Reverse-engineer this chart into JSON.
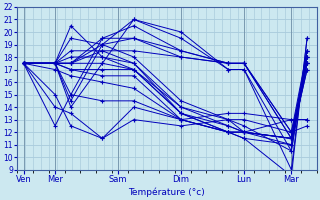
{
  "xlabel": "Température (°c)",
  "bg_color": "#cce8f0",
  "line_color": "#0000bb",
  "grid_color": "#aaccdd",
  "ylim": [
    9,
    22
  ],
  "yticks": [
    9,
    10,
    11,
    12,
    13,
    14,
    15,
    16,
    17,
    18,
    19,
    20,
    21,
    22
  ],
  "xtick_labels": [
    "Ven",
    "Mer",
    "Sam",
    "Dim",
    "Lun",
    "Mar"
  ],
  "xtick_pos": [
    0,
    1,
    3,
    5,
    7,
    8.5
  ],
  "xlim": [
    -0.2,
    9.3
  ],
  "series": [
    [
      17.5,
      17.5,
      20.5,
      18.0,
      17.5,
      13.5,
      12.0,
      11.5,
      8.5,
      19.5
    ],
    [
      17.5,
      17.5,
      19.5,
      19.0,
      18.0,
      14.5,
      13.0,
      12.5,
      10.5,
      18.5
    ],
    [
      17.5,
      17.5,
      18.5,
      18.5,
      17.5,
      14.0,
      13.0,
      12.0,
      11.0,
      18.0
    ],
    [
      17.5,
      17.5,
      18.0,
      18.0,
      17.0,
      14.0,
      12.5,
      12.0,
      11.5,
      17.5
    ],
    [
      17.5,
      17.5,
      17.5,
      17.5,
      17.0,
      13.5,
      12.5,
      12.0,
      11.5,
      17.5
    ],
    [
      17.5,
      17.5,
      17.0,
      17.0,
      17.0,
      13.5,
      12.0,
      12.0,
      11.5,
      17.0
    ],
    [
      17.5,
      17.5,
      17.0,
      16.5,
      16.5,
      13.0,
      12.0,
      12.0,
      11.5,
      17.0
    ],
    [
      17.5,
      17.0,
      16.5,
      16.0,
      15.5,
      13.0,
      12.0,
      11.5,
      11.0,
      17.5
    ],
    [
      17.5,
      12.5,
      15.0,
      14.5,
      14.5,
      13.0,
      12.0,
      12.0,
      13.0,
      13.0
    ],
    [
      17.5,
      14.0,
      13.5,
      11.5,
      14.0,
      13.0,
      13.5,
      13.5,
      13.0,
      13.0
    ],
    [
      17.5,
      15.0,
      12.5,
      11.5,
      13.0,
      12.5,
      13.0,
      13.0,
      12.0,
      12.5
    ],
    [
      17.5,
      17.5,
      14.0,
      17.5,
      21.0,
      20.0,
      17.0,
      17.0,
      9.0,
      19.5
    ],
    [
      17.5,
      17.5,
      14.5,
      19.0,
      21.0,
      19.5,
      17.0,
      17.0,
      10.5,
      18.0
    ],
    [
      17.5,
      17.5,
      15.0,
      19.5,
      20.5,
      18.5,
      17.5,
      17.5,
      11.5,
      18.5
    ],
    [
      17.5,
      17.5,
      17.5,
      19.5,
      19.5,
      18.0,
      17.5,
      17.5,
      12.0,
      17.5
    ],
    [
      17.5,
      17.5,
      17.5,
      19.0,
      19.5,
      18.5,
      17.5,
      17.5,
      11.5,
      18.0
    ],
    [
      17.5,
      17.5,
      17.5,
      18.5,
      18.5,
      18.0,
      17.5,
      17.5,
      12.0,
      18.5
    ]
  ],
  "x_positions": [
    0,
    1,
    1.5,
    2.5,
    3.5,
    5,
    6.5,
    7,
    8.5,
    9.0
  ]
}
